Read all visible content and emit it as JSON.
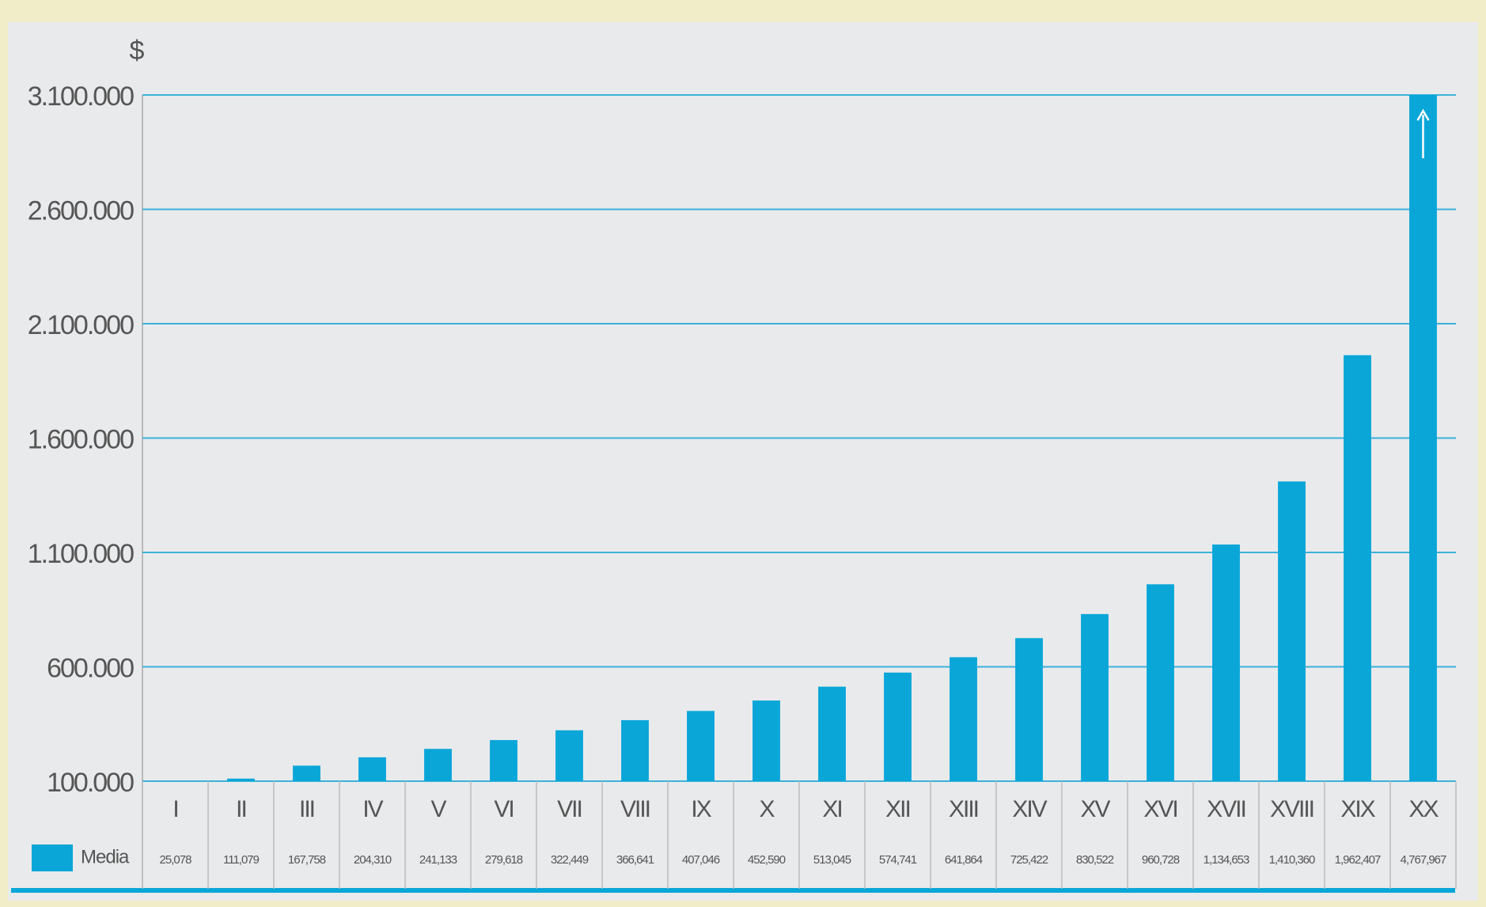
{
  "chart_data": {
    "type": "bar",
    "y_label": "$",
    "categories": [
      "I",
      "II",
      "III",
      "IV",
      "V",
      "VI",
      "VII",
      "VIII",
      "IX",
      "X",
      "XI",
      "XII",
      "XIII",
      "XIV",
      "XV",
      "XVI",
      "XVII",
      "XVIII",
      "XIX",
      "XX"
    ],
    "series": [
      {
        "name": "Media",
        "color": "#0aa6d8",
        "values": [
          25078,
          111079,
          167758,
          204310,
          241133,
          279618,
          322449,
          366641,
          407046,
          452590,
          513045,
          574741,
          641864,
          725422,
          830522,
          960728,
          1134653,
          1410360,
          1962407,
          4767967
        ],
        "value_labels": [
          "25,078",
          "111,079",
          "167,758",
          "204,310",
          "241,133",
          "279,618",
          "322,449",
          "366,641",
          "407,046",
          "452,590",
          "513,045",
          "574,741",
          "641,864",
          "725,422",
          "830,522",
          "960,728",
          "1,134,653",
          "1,410,360",
          "1,962,407",
          "4,767,967"
        ]
      }
    ],
    "ylim": [
      100000,
      3100000
    ],
    "yticks": [
      {
        "value": 100000,
        "label": "100.000"
      },
      {
        "value": 600000,
        "label": "600.000"
      },
      {
        "value": 1100000,
        "label": "1.100.000"
      },
      {
        "value": 1600000,
        "label": "1.600.000"
      },
      {
        "value": 2100000,
        "label": "2.100.000"
      },
      {
        "value": 2600000,
        "label": "2.600.000"
      },
      {
        "value": 3100000,
        "label": "3.100.000"
      }
    ],
    "grid": true
  }
}
